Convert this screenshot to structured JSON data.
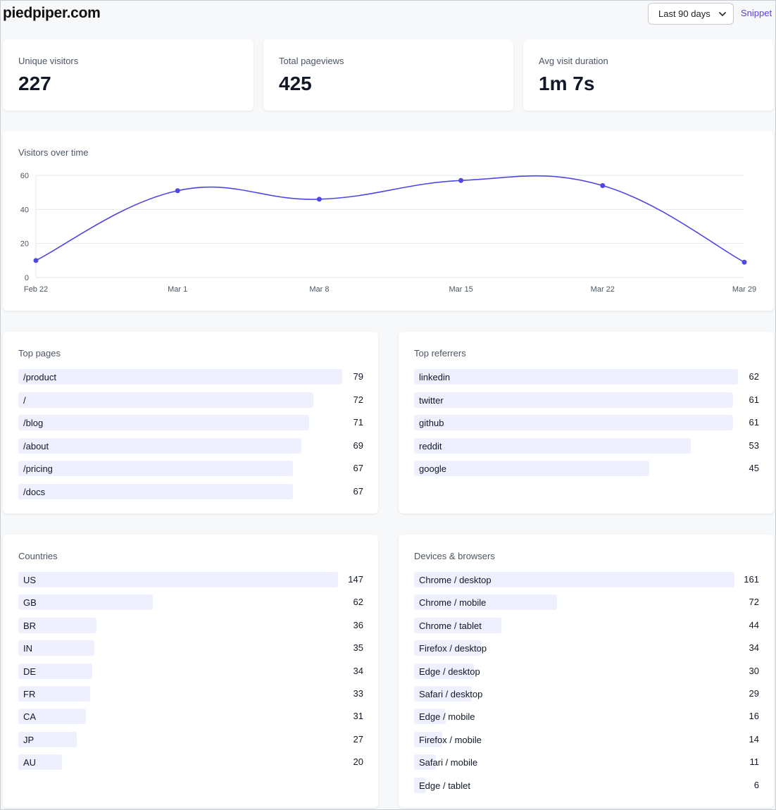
{
  "header": {
    "site": "piedpiper.com",
    "range": "Last 90 days",
    "snippet": "Snippet"
  },
  "stats": [
    {
      "label": "Unique visitors",
      "value": "227"
    },
    {
      "label": "Total pageviews",
      "value": "425"
    },
    {
      "label": "Avg visit duration",
      "value": "1m 7s"
    }
  ],
  "chart_data": {
    "type": "line",
    "title": "Visitors over time",
    "x": [
      "Feb 22",
      "Mar 1",
      "Mar 8",
      "Mar 15",
      "Mar 22",
      "Mar 29"
    ],
    "values": [
      10,
      51,
      46,
      57,
      54,
      9
    ],
    "yticks": [
      0,
      20,
      40,
      60
    ],
    "ylim": [
      0,
      60
    ],
    "grid": true,
    "color": "#4f46e5"
  },
  "top_pages": {
    "title": "Top pages",
    "items": [
      {
        "label": "/product",
        "count": 79
      },
      {
        "label": "/",
        "count": 72
      },
      {
        "label": "/blog",
        "count": 71
      },
      {
        "label": "/about",
        "count": 69
      },
      {
        "label": "/pricing",
        "count": 67
      },
      {
        "label": "/docs",
        "count": 67
      }
    ]
  },
  "top_referrers": {
    "title": "Top referrers",
    "items": [
      {
        "label": "linkedin",
        "count": 62
      },
      {
        "label": "twitter",
        "count": 61
      },
      {
        "label": "github",
        "count": 61
      },
      {
        "label": "reddit",
        "count": 53
      },
      {
        "label": "google",
        "count": 45
      }
    ]
  },
  "countries": {
    "title": "Countries",
    "items": [
      {
        "label": "US",
        "count": 147
      },
      {
        "label": "GB",
        "count": 62
      },
      {
        "label": "BR",
        "count": 36
      },
      {
        "label": "IN",
        "count": 35
      },
      {
        "label": "DE",
        "count": 34
      },
      {
        "label": "FR",
        "count": 33
      },
      {
        "label": "CA",
        "count": 31
      },
      {
        "label": "JP",
        "count": 27
      },
      {
        "label": "AU",
        "count": 20
      }
    ]
  },
  "devices": {
    "title": "Devices & browsers",
    "items": [
      {
        "label": "Chrome / desktop",
        "count": 161
      },
      {
        "label": "Chrome / mobile",
        "count": 72
      },
      {
        "label": "Chrome / tablet",
        "count": 44
      },
      {
        "label": "Firefox / desktop",
        "count": 34
      },
      {
        "label": "Edge / desktop",
        "count": 30
      },
      {
        "label": "Safari / desktop",
        "count": 29
      },
      {
        "label": "Edge / mobile",
        "count": 16
      },
      {
        "label": "Firefox / mobile",
        "count": 14
      },
      {
        "label": "Safari / mobile",
        "count": 11
      },
      {
        "label": "Edge / tablet",
        "count": 6
      }
    ]
  }
}
